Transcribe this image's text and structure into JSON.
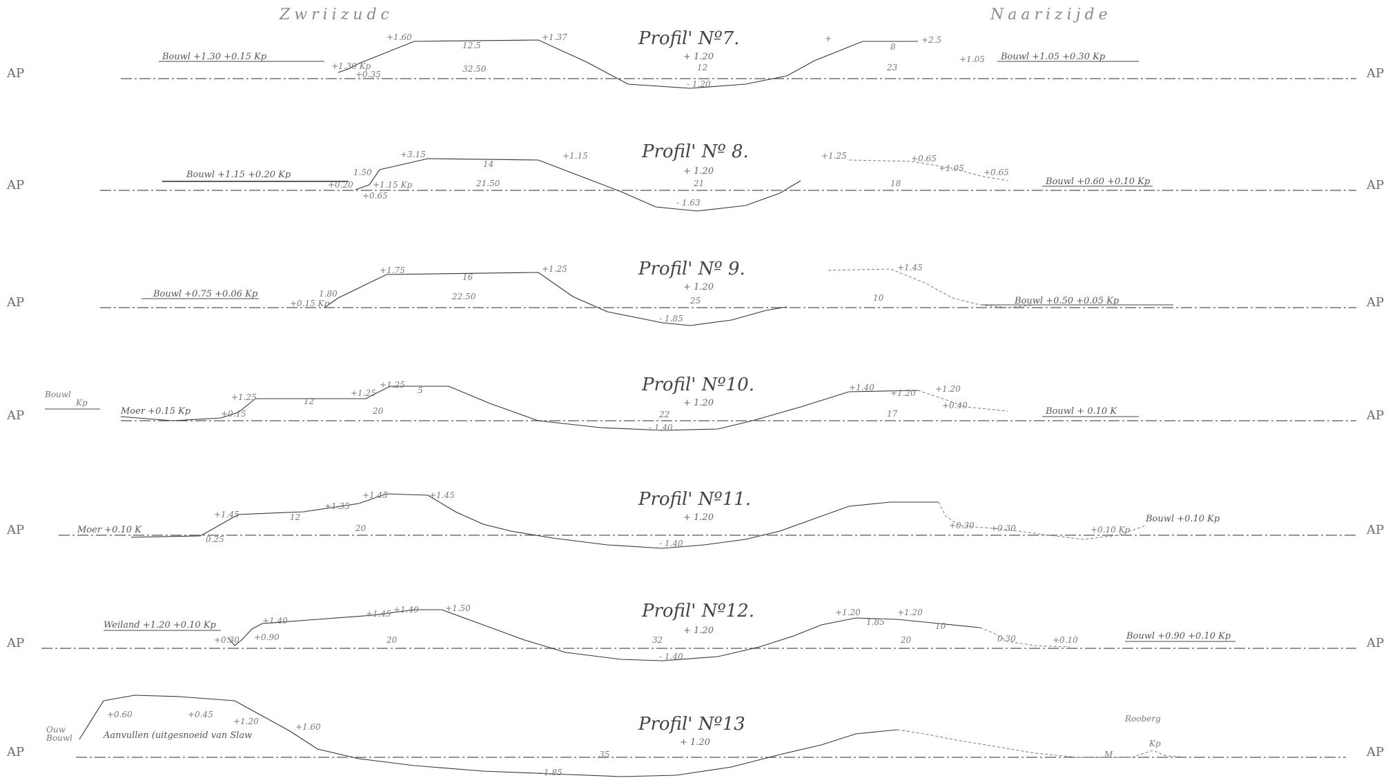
{
  "header": {
    "left": "Zwriizudc",
    "right": "Naarizijde"
  },
  "datum_label": "AP",
  "profiles": [
    {
      "title": "Profil' Nº7.",
      "center_elev": "+ 1.20",
      "center_low": "- 1.20",
      "center_mid": "12",
      "left_annotation": "Bouwl +1.30 +0.15 Kp",
      "right_annotation": "Bouwl +1.05 +0.30 Kp",
      "left_labels": [
        "+1.60",
        "12.5",
        "+1.37",
        "32.50",
        "+1.30 Kp",
        "+0.35"
      ],
      "right_labels": [
        "+",
        "+2.5",
        "8",
        "+1.05",
        "23"
      ]
    },
    {
      "title": "Profil' Nº 8.",
      "center_elev": "+ 1.20",
      "center_low": "- 1.63",
      "center_mid": "21",
      "left_annotation": "Bouwl +1.15 +0.20 Kp",
      "right_annotation": "Bouwl +0.60 +0.10 Kp",
      "left_labels": [
        "+3.15",
        "14",
        "+1.15",
        "1.50",
        "21.50",
        "+0.20",
        "+1.15 Kp",
        "+0.65"
      ],
      "right_labels": [
        "+1.25",
        "+0.65",
        "+1.05",
        "18",
        "+0.65"
      ]
    },
    {
      "title": "Profil' Nº 9.",
      "center_elev": "+ 1.20",
      "center_low": "- 1.85",
      "center_mid": "25",
      "left_annotation": "Bouwl +0.75 +0.06 Kp",
      "right_annotation": "Bouwl +0.50 +0.05 Kp",
      "left_labels": [
        "+1.75",
        "16",
        "+1.25",
        "1.80",
        "22.50",
        "+0.15 Kp"
      ],
      "right_labels": [
        "+1.45",
        "10"
      ]
    },
    {
      "title": "Profil' Nº10.",
      "center_elev": "+ 1.20",
      "center_low": "- 1.40",
      "center_mid": "22",
      "left_annotation": "Moer +0.15 Kp",
      "right_annotation": "Bouwl + 0.10 K",
      "left_labels": [
        "Bouwl",
        "Kp",
        "+1.25",
        "+1.25",
        "+1.25",
        "12",
        "20",
        "5",
        "+0.15"
      ],
      "right_labels": [
        "+1.40",
        "+1.20",
        "+1.20",
        "17",
        "+0.40"
      ]
    },
    {
      "title": "Profil' Nº11.",
      "center_elev": "+ 1.20",
      "center_low": "- 1.40",
      "center_mid": "",
      "left_annotation": "Moer +0.10 K",
      "right_annotation": "Bouwl +0.10 Kp",
      "left_labels": [
        "+1.45",
        "+1.35",
        "12",
        "+1.45",
        "20",
        "+1.45",
        "0.25"
      ],
      "right_labels": [
        "+0.30",
        "+0.30",
        "+0.10 Kp"
      ]
    },
    {
      "title": "Profil' Nº12.",
      "center_elev": "+ 1.20",
      "center_low": "- 1.40",
      "center_mid": "32",
      "left_annotation": "Weiland +1.20 +0.10 Kp",
      "right_annotation": "Bouwl +0.90 +0.10 Kp",
      "left_labels": [
        "+1.40",
        "+1.45",
        "+1.40",
        "+1.50",
        "+0.30",
        "+0.90",
        "20"
      ],
      "right_labels": [
        "+1.20",
        "+1.20",
        "1.85",
        "20",
        "10",
        "0.30",
        "+0.10"
      ]
    },
    {
      "title": "Profil' Nº13",
      "center_elev": "+ 1.20",
      "center_low": "- 1.85",
      "center_mid": "35",
      "left_annotation": "Aanvullen (uitgesnoeid van Slaw",
      "right_annotation": "",
      "left_labels": [
        "+0.60",
        "+0.45",
        "+1.20",
        "+1.60",
        "Ouw",
        "Bouwl"
      ],
      "right_labels": [
        "Rooberg",
        "Kp",
        "M"
      ]
    }
  ]
}
